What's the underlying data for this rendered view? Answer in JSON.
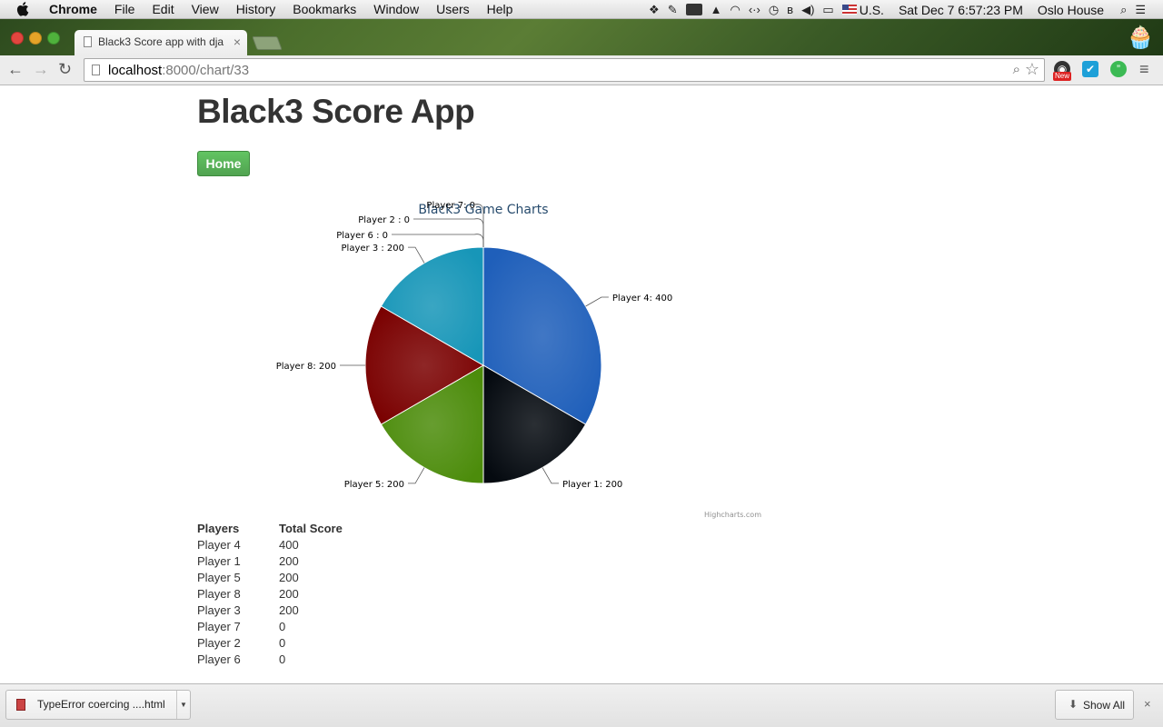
{
  "os_menubar": {
    "menus": [
      "Chrome",
      "File",
      "Edit",
      "View",
      "History",
      "Bookmarks",
      "Window",
      "Users",
      "Help"
    ],
    "input_source": "U.S.",
    "clock": "Sat Dec 7  6:57:23 PM",
    "user": "Oslo House"
  },
  "browser": {
    "tab_title": "Black3 Score app with dja",
    "tab_close": "×",
    "url_host": "localhost",
    "url_path": ":8000/chart/33",
    "ext_badge": "New"
  },
  "page": {
    "title": "Black3 Score App",
    "home_label": "Home"
  },
  "chart_data": {
    "type": "pie",
    "title": "Black3 Game Charts",
    "credits": "Highcharts.com",
    "slices": [
      {
        "name": "Player 4",
        "value": 400,
        "label": "Player 4: 400",
        "color": "#1f5fba"
      },
      {
        "name": "Player 1",
        "value": 200,
        "label": "Player 1: 200",
        "color": "#050a10"
      },
      {
        "name": "Player 5",
        "value": 200,
        "label": "Player 5: 200",
        "color": "#4c8c0b"
      },
      {
        "name": "Player 8",
        "value": 200,
        "label": "Player 8: 200",
        "color": "#7a0000"
      },
      {
        "name": "Player 3",
        "value": 200,
        "label": "Player 3 : 200",
        "color": "#1796b8"
      },
      {
        "name": "Player 6",
        "value": 0,
        "label": "Player 6 : 0",
        "color": "#aaaaaa"
      },
      {
        "name": "Player 2",
        "value": 0,
        "label": "Player 2 : 0",
        "color": "#aaaaaa"
      },
      {
        "name": "Player 7",
        "value": 0,
        "label": "Player 7: 0",
        "color": "#aaaaaa"
      }
    ]
  },
  "table": {
    "headers": [
      "Players",
      "Total Score"
    ],
    "rows": [
      [
        "Player 4",
        "400"
      ],
      [
        "Player 1",
        "200"
      ],
      [
        "Player 5",
        "200"
      ],
      [
        "Player 8",
        "200"
      ],
      [
        "Player 3",
        "200"
      ],
      [
        "Player 7",
        "0"
      ],
      [
        "Player 2",
        "0"
      ],
      [
        "Player 6",
        "0"
      ]
    ]
  },
  "download_shelf": {
    "item_name": "TypeError  coercing ....html",
    "show_all": "Show All",
    "close": "×"
  },
  "colors": {
    "title_text": "#333333",
    "chart_title": "#274b6d",
    "home_button": "#5bb75b"
  }
}
